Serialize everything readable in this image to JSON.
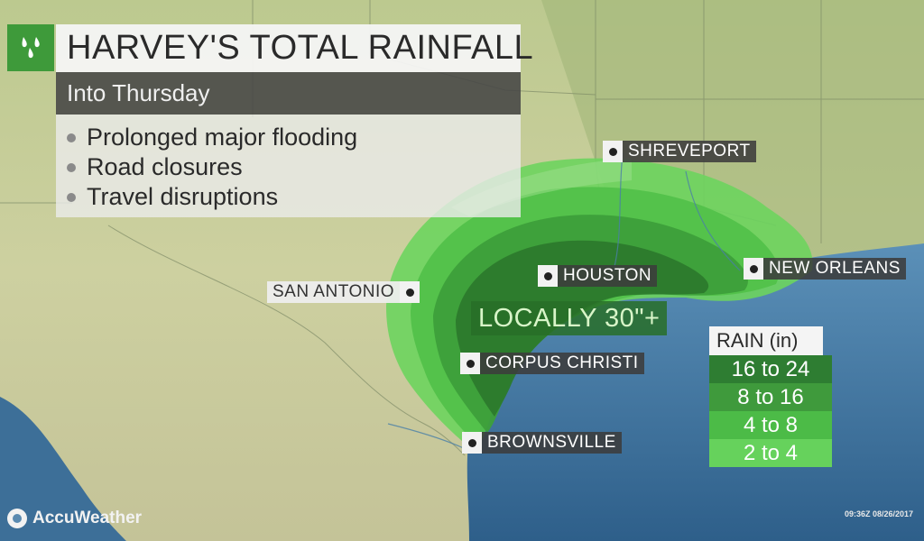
{
  "map": {
    "title": "HARVEY'S TOTAL RAINFALL",
    "subtitle": "Into Thursday",
    "impacts": [
      "Prolonged major flooding",
      "Road closures",
      "Travel disruptions"
    ],
    "icon": "rain-drops-icon"
  },
  "cities": {
    "shreveport": "SHREVEPORT",
    "houston": "HOUSTON",
    "new_orleans": "NEW ORLEANS",
    "san_antonio": "SAN ANTONIO",
    "corpus_christi": "CORPUS CHRISTI",
    "brownsville": "BROWNSVILLE"
  },
  "annotation": "LOCALLY 30\"+",
  "legend": {
    "title": "RAIN (in)",
    "ranges": [
      {
        "label": "16 to 24",
        "color": "#2e7d32"
      },
      {
        "label": "8 to 16",
        "color": "#3f9a3c"
      },
      {
        "label": "4 to 8",
        "color": "#4cbb47"
      },
      {
        "label": "2 to 4",
        "color": "#66d25c"
      }
    ]
  },
  "colors": {
    "land": "#c9cf9e",
    "gulf": "#4f86b0",
    "accent": "#3e9a3a"
  },
  "brand": "AccuWeather",
  "timestamp": "09:36Z 08/26/2017"
}
